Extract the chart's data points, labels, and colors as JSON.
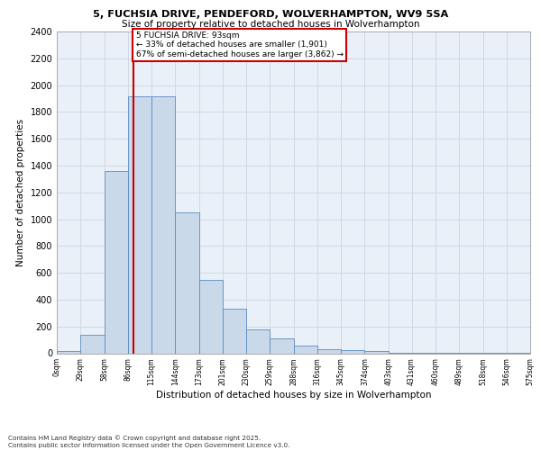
{
  "title1": "5, FUCHSIA DRIVE, PENDEFORD, WOLVERHAMPTON, WV9 5SA",
  "title2": "Size of property relative to detached houses in Wolverhampton",
  "xlabel": "Distribution of detached houses by size in Wolverhampton",
  "ylabel": "Number of detached properties",
  "bar_left_edges": [
    0,
    29,
    58,
    86,
    115,
    144,
    173,
    201,
    230,
    259,
    288,
    316,
    345,
    374,
    403,
    431,
    460,
    489,
    518,
    546
  ],
  "bar_widths": [
    29,
    29,
    28,
    29,
    29,
    29,
    28,
    29,
    29,
    29,
    28,
    29,
    29,
    29,
    28,
    29,
    29,
    29,
    28,
    29
  ],
  "bar_heights": [
    15,
    135,
    1360,
    1920,
    1920,
    1050,
    550,
    335,
    175,
    110,
    55,
    30,
    25,
    20,
    5,
    5,
    5,
    3,
    2,
    2
  ],
  "bar_facecolor": "#c9d9ea",
  "bar_edgecolor": "#5a8bbf",
  "vline_x": 93,
  "vline_color": "#cc0000",
  "annotation_line1": "5 FUCHSIA DRIVE: 93sqm",
  "annotation_line2": "← 33% of detached houses are smaller (1,901)",
  "annotation_line3": "67% of semi-detached houses are larger (3,862) →",
  "annotation_box_facecolor": "#ffffff",
  "annotation_box_edgecolor": "#cc0000",
  "xlim": [
    0,
    575
  ],
  "ylim": [
    0,
    2400
  ],
  "yticks": [
    0,
    200,
    400,
    600,
    800,
    1000,
    1200,
    1400,
    1600,
    1800,
    2000,
    2200,
    2400
  ],
  "xtick_labels": [
    "0sqm",
    "29sqm",
    "58sqm",
    "86sqm",
    "115sqm",
    "144sqm",
    "173sqm",
    "201sqm",
    "230sqm",
    "259sqm",
    "288sqm",
    "316sqm",
    "345sqm",
    "374sqm",
    "403sqm",
    "431sqm",
    "460sqm",
    "489sqm",
    "518sqm",
    "546sqm",
    "575sqm"
  ],
  "xtick_positions": [
    0,
    29,
    58,
    86,
    115,
    144,
    173,
    201,
    230,
    259,
    288,
    316,
    345,
    374,
    403,
    431,
    460,
    489,
    518,
    546,
    575
  ],
  "grid_color": "#d0d8e4",
  "bg_color": "#eaf0f8",
  "footnote": "Contains HM Land Registry data © Crown copyright and database right 2025.\nContains public sector information licensed under the Open Government Licence v3.0."
}
